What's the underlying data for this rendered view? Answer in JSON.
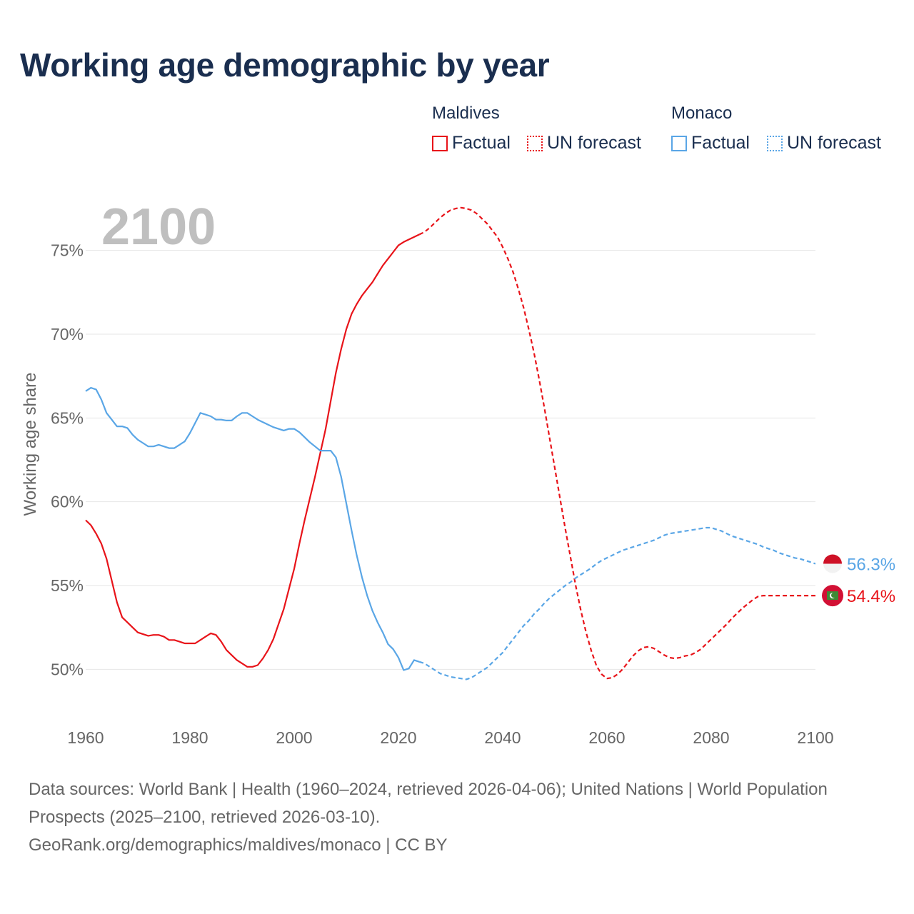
{
  "title": "Working age demographic by year",
  "legend": {
    "groups": [
      {
        "name": "Maldives",
        "factual_label": "Factual",
        "forecast_label": "UN forecast",
        "color": "#e8141a"
      },
      {
        "name": "Monaco",
        "factual_label": "Factual",
        "forecast_label": "UN forecast",
        "color": "#5aa6e6"
      }
    ]
  },
  "chart_data": {
    "type": "line",
    "title": "Working age demographic by year",
    "year_label": "2100",
    "xlabel": "",
    "ylabel": "Working age share",
    "xlim": [
      1960,
      2100
    ],
    "ylim": [
      47.5,
      77.5
    ],
    "x_ticks": [
      "1960",
      "1980",
      "2000",
      "2020",
      "2040",
      "2060",
      "2080",
      "2100"
    ],
    "y_ticks": [
      "50%",
      "55%",
      "60%",
      "65%",
      "70%",
      "75%"
    ],
    "y_tick_values": [
      50,
      55,
      60,
      65,
      70,
      75
    ],
    "x_tick_values": [
      1960,
      1980,
      2000,
      2020,
      2040,
      2060,
      2080,
      2100
    ],
    "factual_range": [
      1960,
      2024
    ],
    "forecast_range": [
      2024,
      2100
    ],
    "series": [
      {
        "name": "Maldives",
        "color": "#e8141a",
        "end_label": "54.4%",
        "points": [
          [
            1960,
            58.9
          ],
          [
            1961,
            58.6
          ],
          [
            1962,
            58.1
          ],
          [
            1963,
            57.5
          ],
          [
            1964,
            56.6
          ],
          [
            1965,
            55.3
          ],
          [
            1966,
            54.0
          ],
          [
            1967,
            53.1
          ],
          [
            1968,
            52.8
          ],
          [
            1969,
            52.5
          ],
          [
            1970,
            52.2
          ],
          [
            1971,
            52.1
          ],
          [
            1972,
            52.0
          ],
          [
            1973,
            52.05
          ],
          [
            1974,
            52.05
          ],
          [
            1975,
            51.95
          ],
          [
            1976,
            51.75
          ],
          [
            1977,
            51.75
          ],
          [
            1978,
            51.65
          ],
          [
            1979,
            51.55
          ],
          [
            1980,
            51.55
          ],
          [
            1981,
            51.55
          ],
          [
            1982,
            51.75
          ],
          [
            1983,
            51.95
          ],
          [
            1984,
            52.15
          ],
          [
            1985,
            52.05
          ],
          [
            1986,
            51.65
          ],
          [
            1987,
            51.15
          ],
          [
            1988,
            50.85
          ],
          [
            1989,
            50.55
          ],
          [
            1990,
            50.35
          ],
          [
            1991,
            50.15
          ],
          [
            1992,
            50.15
          ],
          [
            1993,
            50.25
          ],
          [
            1994,
            50.65
          ],
          [
            1995,
            51.15
          ],
          [
            1996,
            51.8
          ],
          [
            1997,
            52.7
          ],
          [
            1998,
            53.6
          ],
          [
            1999,
            54.8
          ],
          [
            2000,
            56.0
          ],
          [
            2001,
            57.5
          ],
          [
            2002,
            58.9
          ],
          [
            2003,
            60.2
          ],
          [
            2004,
            61.5
          ],
          [
            2005,
            62.9
          ],
          [
            2006,
            64.3
          ],
          [
            2007,
            66.0
          ],
          [
            2008,
            67.7
          ],
          [
            2009,
            69.1
          ],
          [
            2010,
            70.3
          ],
          [
            2011,
            71.2
          ],
          [
            2012,
            71.8
          ],
          [
            2013,
            72.3
          ],
          [
            2014,
            72.7
          ],
          [
            2015,
            73.1
          ],
          [
            2016,
            73.6
          ],
          [
            2017,
            74.1
          ],
          [
            2018,
            74.5
          ],
          [
            2019,
            74.9
          ],
          [
            2020,
            75.3
          ],
          [
            2021,
            75.5
          ],
          [
            2022,
            75.65
          ],
          [
            2023,
            75.8
          ],
          [
            2024,
            75.95
          ],
          [
            2025,
            76.1
          ],
          [
            2026,
            76.35
          ],
          [
            2027,
            76.65
          ],
          [
            2028,
            76.95
          ],
          [
            2029,
            77.2
          ],
          [
            2030,
            77.4
          ],
          [
            2031,
            77.5
          ],
          [
            2032,
            77.55
          ],
          [
            2033,
            77.5
          ],
          [
            2034,
            77.4
          ],
          [
            2035,
            77.2
          ],
          [
            2036,
            76.9
          ],
          [
            2037,
            76.6
          ],
          [
            2038,
            76.2
          ],
          [
            2039,
            75.8
          ],
          [
            2040,
            75.2
          ],
          [
            2041,
            74.5
          ],
          [
            2042,
            73.7
          ],
          [
            2043,
            72.7
          ],
          [
            2044,
            71.6
          ],
          [
            2045,
            70.3
          ],
          [
            2046,
            68.9
          ],
          [
            2047,
            67.3
          ],
          [
            2048,
            65.6
          ],
          [
            2049,
            63.8
          ],
          [
            2050,
            62.0
          ],
          [
            2051,
            60.2
          ],
          [
            2052,
            58.4
          ],
          [
            2053,
            56.7
          ],
          [
            2054,
            55.0
          ],
          [
            2055,
            53.5
          ],
          [
            2056,
            52.2
          ],
          [
            2057,
            51.1
          ],
          [
            2058,
            50.2
          ],
          [
            2059,
            49.7
          ],
          [
            2060,
            49.45
          ],
          [
            2061,
            49.5
          ],
          [
            2062,
            49.7
          ],
          [
            2063,
            50.0
          ],
          [
            2064,
            50.4
          ],
          [
            2065,
            50.8
          ],
          [
            2066,
            51.1
          ],
          [
            2067,
            51.3
          ],
          [
            2068,
            51.35
          ],
          [
            2069,
            51.25
          ],
          [
            2070,
            51.05
          ],
          [
            2071,
            50.85
          ],
          [
            2072,
            50.7
          ],
          [
            2073,
            50.65
          ],
          [
            2074,
            50.7
          ],
          [
            2075,
            50.8
          ],
          [
            2076,
            50.85
          ],
          [
            2077,
            51.0
          ],
          [
            2078,
            51.2
          ],
          [
            2079,
            51.5
          ],
          [
            2080,
            51.8
          ],
          [
            2081,
            52.1
          ],
          [
            2082,
            52.4
          ],
          [
            2083,
            52.7
          ],
          [
            2084,
            53.05
          ],
          [
            2085,
            53.35
          ],
          [
            2086,
            53.65
          ],
          [
            2087,
            53.9
          ],
          [
            2088,
            54.15
          ],
          [
            2089,
            54.35
          ],
          [
            2090,
            54.4
          ],
          [
            2100,
            54.4
          ]
        ]
      },
      {
        "name": "Monaco",
        "color": "#5aa6e6",
        "end_label": "56.3%",
        "points": [
          [
            1960,
            66.6
          ],
          [
            1961,
            66.8
          ],
          [
            1962,
            66.7
          ],
          [
            1963,
            66.1
          ],
          [
            1964,
            65.3
          ],
          [
            1965,
            64.9
          ],
          [
            1966,
            64.5
          ],
          [
            1967,
            64.5
          ],
          [
            1968,
            64.4
          ],
          [
            1969,
            64.0
          ],
          [
            1970,
            63.7
          ],
          [
            1971,
            63.5
          ],
          [
            1972,
            63.3
          ],
          [
            1973,
            63.3
          ],
          [
            1974,
            63.4
          ],
          [
            1975,
            63.3
          ],
          [
            1976,
            63.2
          ],
          [
            1977,
            63.2
          ],
          [
            1978,
            63.4
          ],
          [
            1979,
            63.6
          ],
          [
            1980,
            64.1
          ],
          [
            1981,
            64.7
          ],
          [
            1982,
            65.3
          ],
          [
            1983,
            65.2
          ],
          [
            1984,
            65.1
          ],
          [
            1985,
            64.9
          ],
          [
            1986,
            64.9
          ],
          [
            1987,
            64.85
          ],
          [
            1988,
            64.85
          ],
          [
            1989,
            65.1
          ],
          [
            1990,
            65.3
          ],
          [
            1991,
            65.3
          ],
          [
            1992,
            65.1
          ],
          [
            1993,
            64.9
          ],
          [
            1994,
            64.75
          ],
          [
            1995,
            64.6
          ],
          [
            1996,
            64.45
          ],
          [
            1997,
            64.35
          ],
          [
            1998,
            64.25
          ],
          [
            1999,
            64.35
          ],
          [
            2000,
            64.35
          ],
          [
            2001,
            64.15
          ],
          [
            2002,
            63.85
          ],
          [
            2003,
            63.55
          ],
          [
            2004,
            63.3
          ],
          [
            2005,
            63.05
          ],
          [
            2006,
            63.05
          ],
          [
            2007,
            63.05
          ],
          [
            2008,
            62.65
          ],
          [
            2009,
            61.5
          ],
          [
            2010,
            59.9
          ],
          [
            2011,
            58.3
          ],
          [
            2012,
            56.8
          ],
          [
            2013,
            55.5
          ],
          [
            2014,
            54.4
          ],
          [
            2015,
            53.5
          ],
          [
            2016,
            52.8
          ],
          [
            2017,
            52.2
          ],
          [
            2018,
            51.5
          ],
          [
            2019,
            51.2
          ],
          [
            2020,
            50.7
          ],
          [
            2021,
            49.95
          ],
          [
            2022,
            50.05
          ],
          [
            2023,
            50.55
          ],
          [
            2024,
            50.45
          ],
          [
            2025,
            50.35
          ],
          [
            2026,
            50.15
          ],
          [
            2027,
            49.95
          ],
          [
            2028,
            49.75
          ],
          [
            2029,
            49.65
          ],
          [
            2030,
            49.55
          ],
          [
            2031,
            49.5
          ],
          [
            2032,
            49.45
          ],
          [
            2033,
            49.4
          ],
          [
            2034,
            49.5
          ],
          [
            2035,
            49.7
          ],
          [
            2036,
            49.9
          ],
          [
            2037,
            50.1
          ],
          [
            2038,
            50.4
          ],
          [
            2039,
            50.7
          ],
          [
            2040,
            51.0
          ],
          [
            2041,
            51.4
          ],
          [
            2042,
            51.8
          ],
          [
            2043,
            52.2
          ],
          [
            2044,
            52.6
          ],
          [
            2045,
            52.9
          ],
          [
            2046,
            53.3
          ],
          [
            2047,
            53.6
          ],
          [
            2048,
            53.95
          ],
          [
            2049,
            54.25
          ],
          [
            2050,
            54.5
          ],
          [
            2051,
            54.75
          ],
          [
            2052,
            55.0
          ],
          [
            2053,
            55.2
          ],
          [
            2054,
            55.45
          ],
          [
            2055,
            55.65
          ],
          [
            2056,
            55.85
          ],
          [
            2057,
            56.05
          ],
          [
            2058,
            56.3
          ],
          [
            2059,
            56.5
          ],
          [
            2060,
            56.65
          ],
          [
            2061,
            56.8
          ],
          [
            2062,
            56.95
          ],
          [
            2063,
            57.1
          ],
          [
            2064,
            57.2
          ],
          [
            2065,
            57.3
          ],
          [
            2066,
            57.4
          ],
          [
            2067,
            57.5
          ],
          [
            2068,
            57.6
          ],
          [
            2069,
            57.7
          ],
          [
            2070,
            57.85
          ],
          [
            2071,
            58.0
          ],
          [
            2072,
            58.1
          ],
          [
            2073,
            58.15
          ],
          [
            2074,
            58.2
          ],
          [
            2075,
            58.25
          ],
          [
            2076,
            58.3
          ],
          [
            2077,
            58.35
          ],
          [
            2078,
            58.4
          ],
          [
            2079,
            58.45
          ],
          [
            2080,
            58.45
          ],
          [
            2081,
            58.35
          ],
          [
            2082,
            58.25
          ],
          [
            2083,
            58.1
          ],
          [
            2084,
            57.95
          ],
          [
            2085,
            57.85
          ],
          [
            2086,
            57.75
          ],
          [
            2087,
            57.65
          ],
          [
            2088,
            57.55
          ],
          [
            2089,
            57.45
          ],
          [
            2090,
            57.3
          ],
          [
            2091,
            57.2
          ],
          [
            2092,
            57.1
          ],
          [
            2093,
            56.95
          ],
          [
            2094,
            56.85
          ],
          [
            2095,
            56.75
          ],
          [
            2096,
            56.65
          ],
          [
            2097,
            56.6
          ],
          [
            2098,
            56.5
          ],
          [
            2099,
            56.4
          ],
          [
            2100,
            56.3
          ]
        ]
      }
    ]
  },
  "footer": {
    "line1": "Data sources: World Bank | Health (1960–2024, retrieved 2026-04-06); United Nations | World Population Prospects (2025–2100, retrieved 2026-03-10).",
    "line2": "GeoRank.org/demographics/maldives/monaco | CC BY"
  }
}
